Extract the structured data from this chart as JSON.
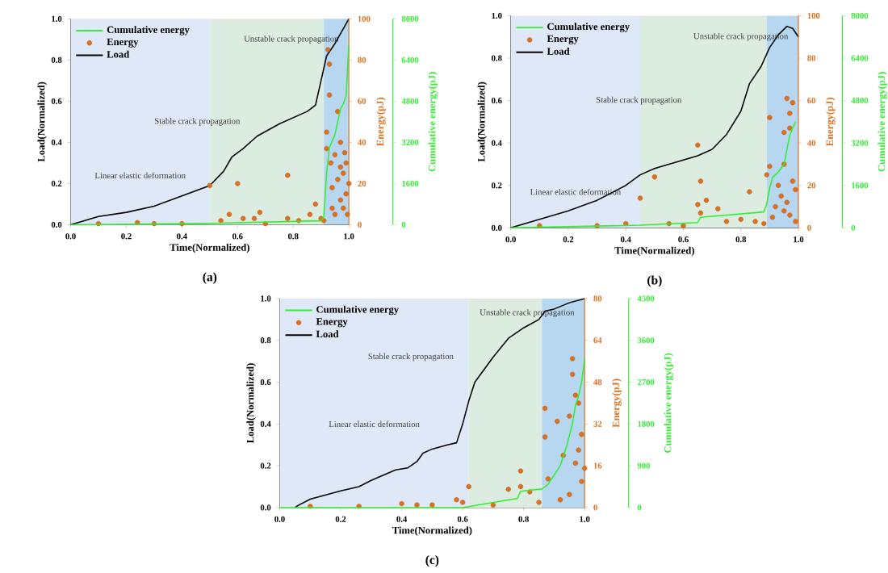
{
  "chart_data": [
    {
      "type": "line",
      "xlabel": "Time(Normalized)",
      "ylabel": "Load(Normalized)",
      "y2label": "Energy(pJ)",
      "y3label": "Cumulative energy(pJ)",
      "annotations": [
        "(a)"
      ],
      "legend": "top left",
      "xlim": [
        0,
        1
      ],
      "ylim": [
        0,
        1
      ],
      "y2lim": [
        0,
        100
      ],
      "y3lim": [
        0,
        8000
      ],
      "xticks": [
        {
          "value": 0,
          "label": "0.0"
        },
        {
          "value": 0.2,
          "label": "0.2"
        },
        {
          "value": 0.4,
          "label": "0.4"
        },
        {
          "value": 0.6,
          "label": "0.6"
        },
        {
          "value": 0.8,
          "label": "0.8"
        },
        {
          "value": 1,
          "label": "1.0"
        }
      ],
      "yticks": [
        {
          "value": 0,
          "label": "0.0"
        },
        {
          "value": 0.2,
          "label": "0.2"
        },
        {
          "value": 0.4,
          "label": "0.4"
        },
        {
          "value": 0.6,
          "label": "0.6"
        },
        {
          "value": 0.8,
          "label": "0.8"
        },
        {
          "value": 1,
          "label": "1.0"
        }
      ],
      "y2ticks": [
        0,
        20,
        40,
        60,
        80,
        100
      ],
      "y3ticks": [
        0,
        1600,
        3200,
        4800,
        6400,
        8000
      ],
      "bands": [
        {
          "axis": "x",
          "from": 0,
          "to": 0.5,
          "label": "Linear elastic deformation",
          "color": "#dfe8f7"
        },
        {
          "axis": "x",
          "from": 0.5,
          "to": 0.91,
          "label": "Stable crack propagation",
          "color": "#dcece0"
        },
        {
          "axis": "x",
          "from": 0.91,
          "to": 1,
          "label": "Unstable crack propagation",
          "color": "#b7d6f0"
        }
      ],
      "series": [
        {
          "name": "Cumulative energy",
          "axis": "y3",
          "color": "#33ee33",
          "x": [
            0,
            0.5,
            0.9,
            0.91,
            0.92,
            0.93,
            0.95,
            0.97,
            0.98,
            0.99,
            1.0
          ],
          "values": [
            0,
            50,
            150,
            300,
            2000,
            3000,
            3500,
            4500,
            4700,
            5000,
            7000
          ]
        },
        {
          "name": "Energy",
          "type": "scatter",
          "axis": "y2",
          "color": "#e0701e",
          "x": [
            0.1,
            0.24,
            0.3,
            0.4,
            0.5,
            0.54,
            0.57,
            0.6,
            0.62,
            0.66,
            0.68,
            0.7,
            0.78,
            0.78,
            0.82,
            0.86,
            0.88,
            0.9,
            0.91,
            0.92,
            0.92,
            0.925,
            0.93,
            0.93,
            0.935,
            0.94,
            0.94,
            0.95,
            0.95,
            0.96,
            0.96,
            0.97,
            0.97,
            0.97,
            0.98,
            0.98,
            0.985,
            0.99,
            0.99,
            0.995,
            1.0
          ],
          "values": [
            0.5,
            1,
            0.5,
            0.5,
            19,
            2,
            5,
            20,
            3,
            3,
            6,
            0.5,
            24,
            3,
            2,
            5,
            10,
            3,
            2,
            37,
            45,
            85,
            78,
            63,
            30,
            18,
            8,
            34,
            5,
            55,
            22,
            40,
            12,
            28,
            25,
            8,
            35,
            30,
            15,
            5,
            20
          ]
        },
        {
          "name": "Load",
          "axis": "y",
          "color": "#000000",
          "x": [
            0,
            0.1,
            0.2,
            0.3,
            0.4,
            0.5,
            0.55,
            0.58,
            0.62,
            0.67,
            0.75,
            0.85,
            0.88,
            0.9,
            0.92,
            0.95,
            1.0
          ],
          "values": [
            0,
            0.04,
            0.06,
            0.09,
            0.14,
            0.19,
            0.26,
            0.33,
            0.37,
            0.43,
            0.49,
            0.55,
            0.58,
            0.7,
            0.82,
            0.88,
            1.0
          ]
        }
      ]
    },
    {
      "type": "line",
      "xlabel": "Time(Normalized)",
      "ylabel": "Load(Normalized)",
      "y2label": "Energy(pJ)",
      "y3label": "Cumulative energy(pJ)",
      "annotations": [
        "(b)"
      ],
      "legend": "top left",
      "xlim": [
        0,
        1
      ],
      "ylim": [
        0,
        1
      ],
      "y2lim": [
        0,
        100
      ],
      "y3lim": [
        0,
        8000
      ],
      "xticks": [
        {
          "value": 0,
          "label": "0.0"
        },
        {
          "value": 0.2,
          "label": "0.2"
        },
        {
          "value": 0.4,
          "label": "0.4"
        },
        {
          "value": 0.6,
          "label": "0.6"
        },
        {
          "value": 0.8,
          "label": "0.8"
        },
        {
          "value": 1,
          "label": "1.0"
        }
      ],
      "yticks": [
        {
          "value": 0,
          "label": "0.0"
        },
        {
          "value": 0.2,
          "label": "0.2"
        },
        {
          "value": 0.4,
          "label": "0.4"
        },
        {
          "value": 0.6,
          "label": "0.6"
        },
        {
          "value": 0.8,
          "label": "0.8"
        },
        {
          "value": 1,
          "label": "1.0"
        }
      ],
      "y2ticks": [
        0,
        20,
        40,
        60,
        80,
        100
      ],
      "y3ticks": [
        0,
        1600,
        3200,
        4800,
        6400,
        8000
      ],
      "bands": [
        {
          "axis": "x",
          "from": 0,
          "to": 0.45,
          "label": "Linear elastic deformation",
          "color": "#dfe8f7"
        },
        {
          "axis": "x",
          "from": 0.45,
          "to": 0.89,
          "label": "Stable crack propagation",
          "color": "#dcece0"
        },
        {
          "axis": "x",
          "from": 0.89,
          "to": 1,
          "label": "Unstable crack propagation",
          "color": "#b7d6f0"
        }
      ],
      "series": [
        {
          "name": "Cumulative energy",
          "axis": "y3",
          "color": "#33ee33",
          "x": [
            0,
            0.45,
            0.65,
            0.66,
            0.88,
            0.89,
            0.9,
            0.91,
            0.93,
            0.95,
            0.97,
            0.99
          ],
          "values": [
            0,
            100,
            200,
            400,
            600,
            900,
            1500,
            1900,
            2100,
            2400,
            3500,
            4000
          ]
        },
        {
          "name": "Energy",
          "type": "scatter",
          "axis": "y2",
          "color": "#e0701e",
          "x": [
            0.1,
            0.3,
            0.4,
            0.45,
            0.5,
            0.55,
            0.6,
            0.65,
            0.65,
            0.66,
            0.66,
            0.68,
            0.72,
            0.75,
            0.8,
            0.83,
            0.85,
            0.88,
            0.89,
            0.9,
            0.9,
            0.91,
            0.92,
            0.93,
            0.94,
            0.95,
            0.95,
            0.95,
            0.96,
            0.96,
            0.97,
            0.97,
            0.97,
            0.98,
            0.98,
            0.99,
            0.99
          ],
          "values": [
            1,
            1,
            2,
            14,
            24,
            2,
            1,
            39,
            11,
            22,
            7,
            13,
            9,
            3,
            4,
            17,
            3,
            2,
            25,
            29,
            52,
            5,
            10,
            20,
            15,
            30,
            45,
            8,
            61,
            12,
            47,
            54,
            6,
            59,
            22,
            18,
            3
          ]
        },
        {
          "name": "Load",
          "axis": "y",
          "color": "#000000",
          "x": [
            0,
            0.1,
            0.2,
            0.3,
            0.4,
            0.45,
            0.5,
            0.6,
            0.65,
            0.7,
            0.75,
            0.8,
            0.83,
            0.87,
            0.9,
            0.93,
            0.96,
            0.98,
            1.0
          ],
          "values": [
            0,
            0.04,
            0.08,
            0.13,
            0.2,
            0.25,
            0.28,
            0.32,
            0.34,
            0.37,
            0.44,
            0.55,
            0.68,
            0.76,
            0.85,
            0.91,
            0.95,
            0.94,
            0.9
          ]
        }
      ]
    },
    {
      "type": "line",
      "xlabel": "Time(Normalized)",
      "ylabel": "Load(Normalized)",
      "y2label": "Energy(pJ)",
      "y3label": "Cumulative energy(pJ)",
      "annotations": [
        "(c)"
      ],
      "legend": "top left",
      "xlim": [
        0,
        1
      ],
      "ylim": [
        0,
        1
      ],
      "y2lim": [
        0,
        80
      ],
      "y3lim": [
        0,
        4500
      ],
      "xticks": [
        {
          "value": 0,
          "label": "0.0"
        },
        {
          "value": 0.2,
          "label": "0.2"
        },
        {
          "value": 0.4,
          "label": "0.4"
        },
        {
          "value": 0.6,
          "label": "0.6"
        },
        {
          "value": 0.8,
          "label": "0.8"
        },
        {
          "value": 1,
          "label": "1.0"
        }
      ],
      "yticks": [
        {
          "value": 0,
          "label": "0.0"
        },
        {
          "value": 0.2,
          "label": "0.2"
        },
        {
          "value": 0.4,
          "label": "0.4"
        },
        {
          "value": 0.6,
          "label": "0.6"
        },
        {
          "value": 0.8,
          "label": "0.8"
        },
        {
          "value": 1,
          "label": "1.0"
        }
      ],
      "y2ticks": [
        0,
        16,
        32,
        48,
        64,
        80
      ],
      "y3ticks": [
        0,
        900,
        1800,
        2700,
        3600,
        4500
      ],
      "bands": [
        {
          "axis": "x",
          "from": 0,
          "to": 0.62,
          "label": "Linear elastic deformation",
          "color": "#dfe8f7"
        },
        {
          "axis": "x",
          "from": 0.62,
          "to": 0.86,
          "label": "Stable crack propagation",
          "color": "#dcece0"
        },
        {
          "axis": "x",
          "from": 0.86,
          "to": 1,
          "label": "Unstable crack propagation",
          "color": "#b7d6f0"
        }
      ],
      "series": [
        {
          "name": "Cumulative energy",
          "axis": "y3",
          "color": "#33ee33",
          "x": [
            0,
            0.6,
            0.78,
            0.79,
            0.86,
            0.88,
            0.9,
            0.92,
            0.94,
            0.96,
            0.97,
            0.98,
            0.99,
            1.0
          ],
          "values": [
            0,
            0,
            200,
            350,
            400,
            500,
            700,
            900,
            1300,
            1800,
            2200,
            2400,
            2700,
            3200
          ]
        },
        {
          "name": "Energy",
          "type": "scatter",
          "axis": "y2",
          "color": "#e0701e",
          "x": [
            0.1,
            0.26,
            0.4,
            0.45,
            0.5,
            0.58,
            0.6,
            0.62,
            0.7,
            0.75,
            0.79,
            0.79,
            0.82,
            0.85,
            0.87,
            0.87,
            0.88,
            0.91,
            0.92,
            0.93,
            0.95,
            0.95,
            0.96,
            0.96,
            0.97,
            0.97,
            0.98,
            0.98,
            0.99,
            0.99,
            1.0
          ],
          "values": [
            0.5,
            0.5,
            1.5,
            1,
            1,
            3,
            2,
            8,
            1,
            7,
            14,
            8,
            6,
            2,
            38,
            27,
            11,
            33,
            3,
            20,
            35,
            5,
            57,
            51,
            43,
            17,
            40,
            22,
            28,
            10,
            15
          ]
        },
        {
          "name": "Load",
          "axis": "y",
          "color": "#000000",
          "x": [
            0.05,
            0.06,
            0.1,
            0.15,
            0.2,
            0.26,
            0.3,
            0.38,
            0.42,
            0.45,
            0.47,
            0.5,
            0.55,
            0.58,
            0.6,
            0.62,
            0.64,
            0.7,
            0.75,
            0.8,
            0.85,
            0.87,
            0.9,
            0.95,
            1.0
          ],
          "values": [
            0,
            0.01,
            0.04,
            0.06,
            0.08,
            0.1,
            0.13,
            0.18,
            0.19,
            0.22,
            0.26,
            0.28,
            0.3,
            0.31,
            0.4,
            0.51,
            0.6,
            0.72,
            0.81,
            0.86,
            0.9,
            0.94,
            0.95,
            0.98,
            1.0
          ]
        }
      ]
    }
  ]
}
